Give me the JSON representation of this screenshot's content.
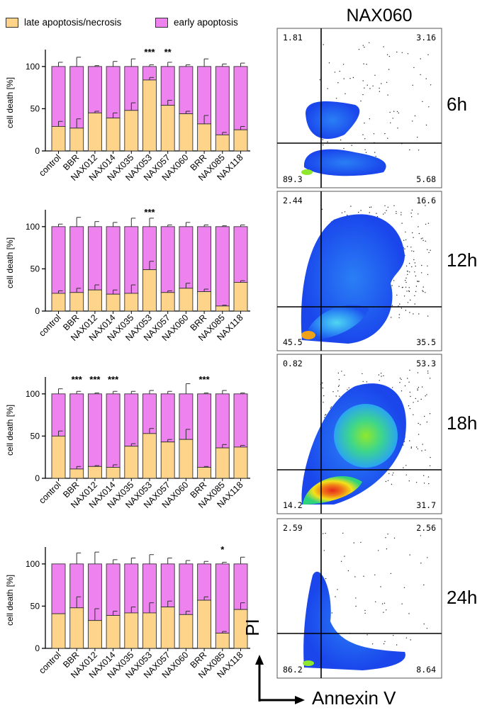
{
  "legend": {
    "late_label": "late apoptosis/necrosis",
    "early_label": "early apoptosis",
    "late_color": "#fdd48a",
    "early_color": "#ee82ee"
  },
  "flow": {
    "title": "NAX060",
    "y_label": "PI",
    "x_label": "Annexin V",
    "panels": [
      {
        "time": "6h",
        "q_tl": "1.81",
        "q_tr": "3.16",
        "q_bl": "89.3",
        "q_br": "5.68"
      },
      {
        "time": "12h",
        "q_tl": "2.44",
        "q_tr": "16.6",
        "q_bl": "45.5",
        "q_br": "35.5"
      },
      {
        "time": "18h",
        "q_tl": "0.82",
        "q_tr": "53.3",
        "q_bl": "14.2",
        "q_br": "31.7"
      },
      {
        "time": "24h",
        "q_tl": "2.59",
        "q_tr": "2.56",
        "q_bl": "86.2",
        "q_br": "8.64"
      }
    ]
  },
  "chart_data": [
    {
      "type": "bar",
      "stacked": true,
      "ylabel": "cell death [%]",
      "ylim": [
        0,
        120
      ],
      "yticks": [
        "0",
        "50",
        "100"
      ],
      "categories": [
        "control",
        "BBR",
        "NAX012",
        "NAX014",
        "NAX035",
        "NAX053",
        "NAX057",
        "NAX060",
        "BRR",
        "NAX085",
        "NAX118"
      ],
      "series": [
        {
          "name": "late apoptosis/necrosis",
          "values": [
            29,
            27,
            45,
            39,
            48,
            84,
            54,
            44,
            32,
            19,
            25
          ],
          "errors": [
            6,
            11,
            2,
            6,
            9,
            3,
            6,
            3,
            10,
            3,
            4
          ]
        },
        {
          "name": "early apoptosis",
          "values": [
            71,
            73,
            55,
            61,
            52,
            16,
            46,
            56,
            68,
            81,
            75
          ],
          "errors": [
            5,
            11,
            1,
            6,
            9,
            2,
            5,
            2,
            9,
            3,
            4
          ]
        }
      ],
      "annotations": [
        {
          "index": 5,
          "text": "***"
        },
        {
          "index": 6,
          "text": "**"
        }
      ]
    },
    {
      "type": "bar",
      "stacked": true,
      "ylabel": "cell death [%]",
      "ylim": [
        0,
        120
      ],
      "yticks": [
        "0",
        "50",
        "100"
      ],
      "categories": [
        "control",
        "BBR",
        "NAX012",
        "NAX014",
        "NAX035",
        "NAX053",
        "NAX057",
        "NAX060",
        "BRR",
        "NAX085",
        "NAX118"
      ],
      "series": [
        {
          "name": "late apoptosis/necrosis",
          "values": [
            21,
            22,
            25,
            20,
            21,
            49,
            22,
            27,
            23,
            6,
            34
          ],
          "errors": [
            3,
            5,
            6,
            5,
            10,
            10,
            2,
            6,
            3,
            1,
            2
          ]
        },
        {
          "name": "early apoptosis",
          "values": [
            79,
            78,
            75,
            80,
            79,
            51,
            78,
            73,
            77,
            94,
            66
          ],
          "errors": [
            3,
            11,
            6,
            5,
            10,
            10,
            2,
            5,
            2,
            1,
            2
          ]
        }
      ],
      "annotations": [
        {
          "index": 5,
          "text": "***"
        }
      ]
    },
    {
      "type": "bar",
      "stacked": true,
      "ylabel": "cell death [%]",
      "ylim": [
        0,
        120
      ],
      "yticks": [
        "0",
        "50",
        "100"
      ],
      "categories": [
        "control",
        "BBR",
        "NAX012",
        "NAX014",
        "NAX035",
        "NAX053",
        "NAX057",
        "NAX060",
        "BRR",
        "NAX085",
        "NAX118"
      ],
      "series": [
        {
          "name": "late apoptosis/necrosis",
          "values": [
            50,
            11,
            14,
            13,
            38,
            53,
            43,
            46,
            13,
            36,
            37
          ],
          "errors": [
            6,
            3,
            1,
            3,
            3,
            6,
            3,
            12,
            1,
            4,
            2
          ]
        },
        {
          "name": "early apoptosis",
          "values": [
            50,
            89,
            86,
            87,
            62,
            47,
            57,
            54,
            87,
            64,
            63
          ],
          "errors": [
            6,
            3,
            1,
            3,
            3,
            4,
            3,
            12,
            1,
            4,
            1
          ]
        }
      ],
      "annotations": [
        {
          "index": 1,
          "text": "***"
        },
        {
          "index": 2,
          "text": "***"
        },
        {
          "index": 3,
          "text": "***"
        },
        {
          "index": 8,
          "text": "***"
        }
      ]
    },
    {
      "type": "bar",
      "stacked": true,
      "ylabel": "cell death [%]",
      "ylim": [
        0,
        120
      ],
      "yticks": [
        "0",
        "50",
        "100"
      ],
      "categories": [
        "control",
        "BBR",
        "NAX012",
        "NAX014",
        "NAX035",
        "NAX053",
        "NAX057",
        "NAX060",
        "BRR",
        "NAX085",
        "NAX118"
      ],
      "series": [
        {
          "name": "late apoptosis/necrosis",
          "values": [
            41,
            48,
            33,
            39,
            42,
            42,
            49,
            40,
            57,
            18,
            46
          ],
          "errors": [
            0,
            13,
            14,
            5,
            7,
            12,
            7,
            4,
            4,
            2,
            8
          ]
        },
        {
          "name": "early apoptosis",
          "values": [
            59,
            52,
            67,
            61,
            58,
            58,
            51,
            60,
            43,
            82,
            54
          ],
          "errors": [
            0,
            13,
            14,
            5,
            7,
            11,
            7,
            4,
            3,
            2,
            8
          ]
        }
      ],
      "annotations": [
        {
          "index": 9,
          "text": "*"
        }
      ]
    }
  ]
}
